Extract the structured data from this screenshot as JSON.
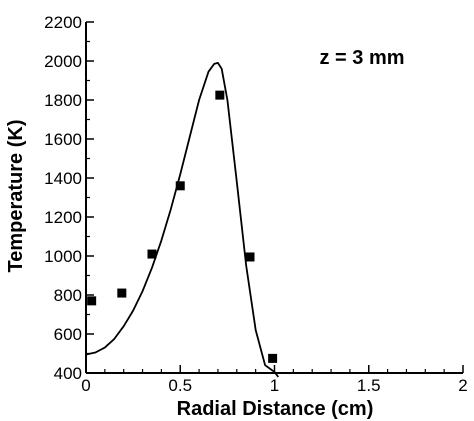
{
  "chart_data": {
    "type": "scatter",
    "annotation": "z = 3 mm",
    "xlabel": "Radial Distance (cm)",
    "ylabel": "Temperature (K)",
    "xlim": [
      0,
      2
    ],
    "ylim": [
      400,
      2200
    ],
    "x_ticks": [
      "0",
      "0.5",
      "1",
      "1.5",
      "2"
    ],
    "y_ticks": [
      "400",
      "600",
      "800",
      "1000",
      "1200",
      "1400",
      "1600",
      "1800",
      "2000",
      "2200"
    ],
    "grid": false,
    "legend": "none",
    "series": [
      {
        "kind": "scatter",
        "marker": "square",
        "color": "#000000",
        "x": [
          0.03,
          0.19,
          0.35,
          0.5,
          0.71,
          0.87,
          0.99
        ],
        "y": [
          770,
          810,
          1010,
          1360,
          1825,
          995,
          475
        ]
      },
      {
        "kind": "line",
        "color": "#000000",
        "x": [
          0.0,
          0.05,
          0.1,
          0.15,
          0.2,
          0.25,
          0.3,
          0.35,
          0.4,
          0.45,
          0.5,
          0.55,
          0.6,
          0.65,
          0.68,
          0.7,
          0.72,
          0.75,
          0.8,
          0.85,
          0.9,
          0.95,
          1.0,
          1.02
        ],
        "y": [
          495,
          505,
          530,
          575,
          640,
          720,
          820,
          940,
          1080,
          1240,
          1420,
          1610,
          1800,
          1945,
          1985,
          1990,
          1960,
          1800,
          1380,
          950,
          620,
          440,
          405,
          380
        ]
      }
    ]
  }
}
